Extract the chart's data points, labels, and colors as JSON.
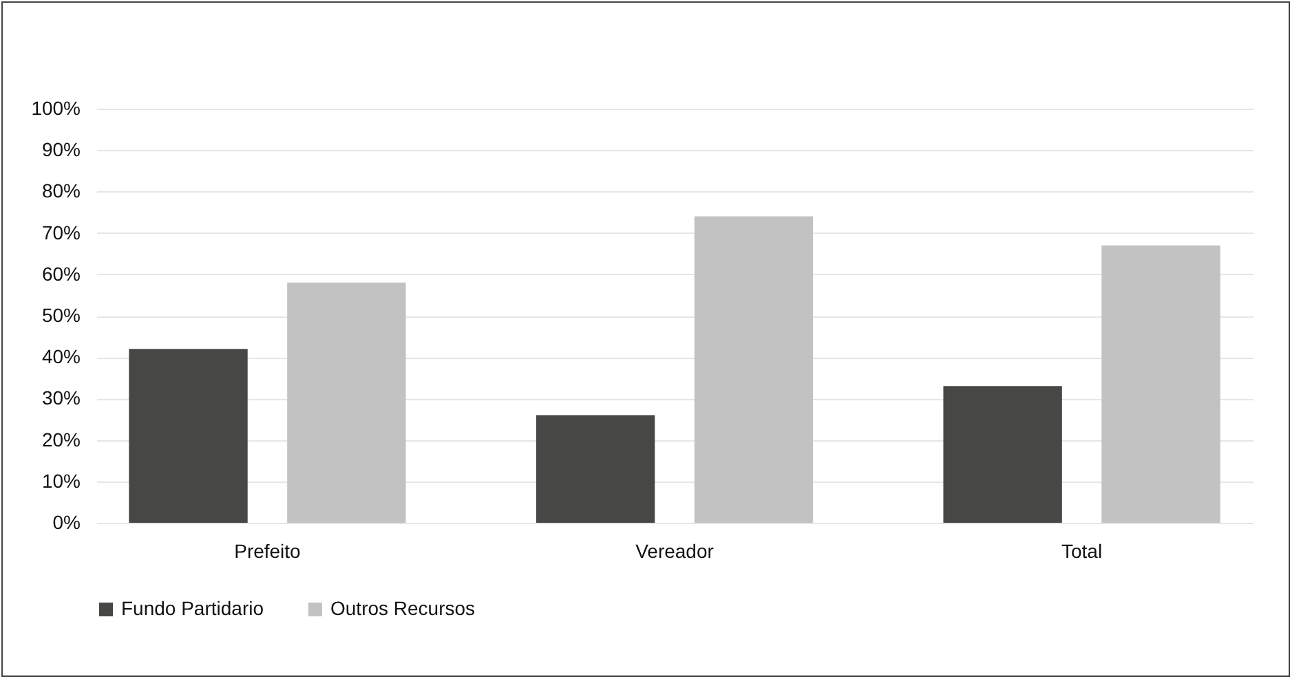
{
  "chart_data": {
    "type": "bar",
    "categories": [
      "Prefeito",
      "Vereador",
      "Total"
    ],
    "series": [
      {
        "name": "Fundo Partidario",
        "color": "#474745",
        "values": [
          42,
          26,
          33
        ]
      },
      {
        "name": "Outros Recursos",
        "color": "#c2c2c2",
        "values": [
          58,
          74,
          67
        ]
      }
    ],
    "ylim": [
      0,
      100
    ],
    "yticks": [
      {
        "value": 0,
        "label": "0%"
      },
      {
        "value": 10,
        "label": "10%"
      },
      {
        "value": 20,
        "label": "20%"
      },
      {
        "value": 30,
        "label": "30%"
      },
      {
        "value": 40,
        "label": "40%"
      },
      {
        "value": 50,
        "label": "50%"
      },
      {
        "value": 60,
        "label": "60%"
      },
      {
        "value": 70,
        "label": "70%"
      },
      {
        "value": 80,
        "label": "80%"
      },
      {
        "value": 90,
        "label": "90%"
      },
      {
        "value": 100,
        "label": "100%"
      }
    ],
    "grid": "y",
    "legend": "bottom"
  }
}
